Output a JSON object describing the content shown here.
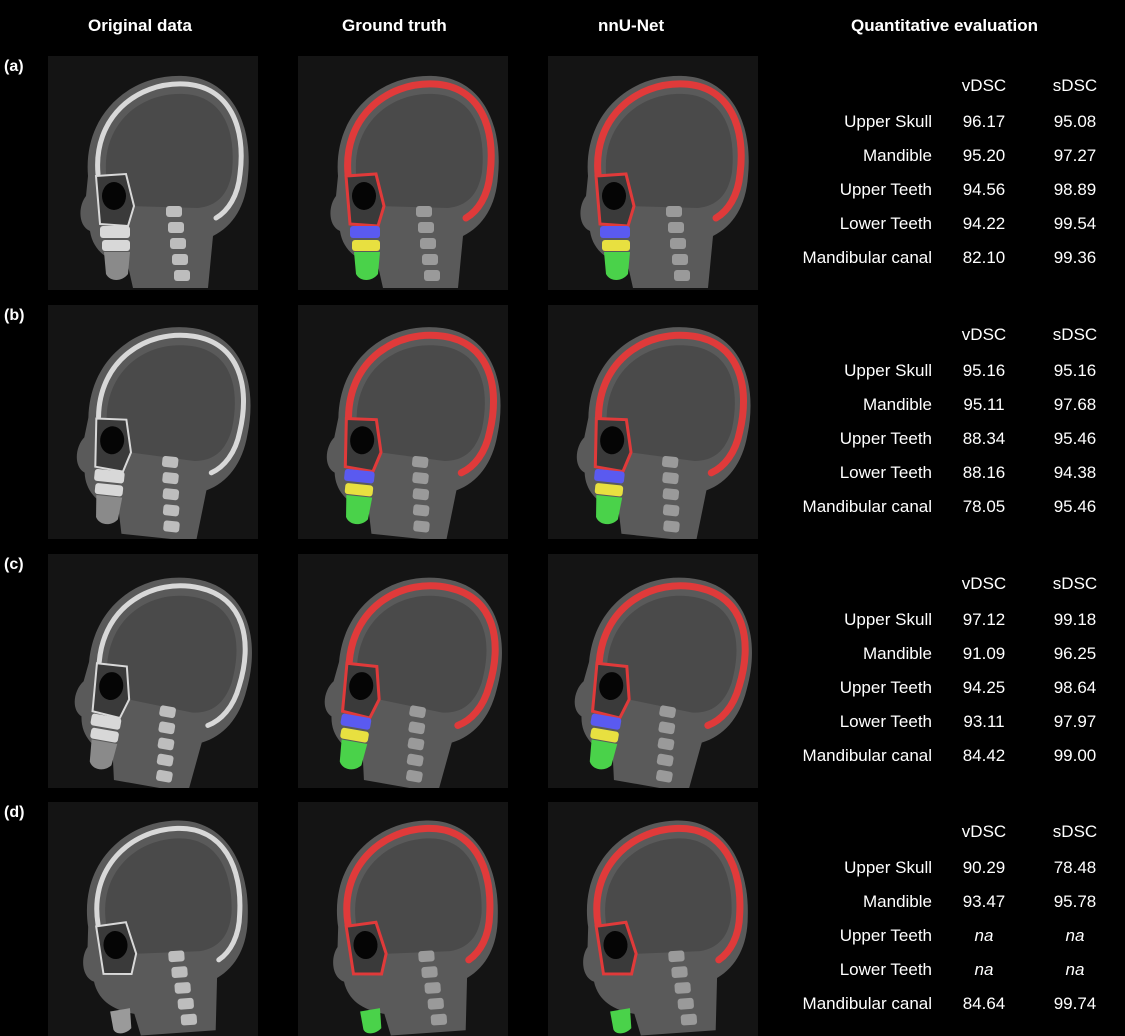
{
  "headers": {
    "original": "Original data",
    "ground_truth": "Ground truth",
    "nnunet": "nnU-Net",
    "quant": "Quantitative evaluation"
  },
  "rows": [
    {
      "label": "(a)",
      "col_vdsc": "vDSC",
      "col_sdsc": "sDSC",
      "metrics": [
        {
          "name": "Upper Skull",
          "vdsc": "96.17",
          "sdsc": "95.08"
        },
        {
          "name": "Mandible",
          "vdsc": "95.20",
          "sdsc": "97.27"
        },
        {
          "name": "Upper Teeth",
          "vdsc": "94.56",
          "sdsc": "98.89"
        },
        {
          "name": "Lower Teeth",
          "vdsc": "94.22",
          "sdsc": "99.54"
        },
        {
          "name": "Mandibular canal",
          "vdsc": "82.10",
          "sdsc": "99.36"
        }
      ]
    },
    {
      "label": "(b)",
      "col_vdsc": "vDSC",
      "col_sdsc": "sDSC",
      "metrics": [
        {
          "name": "Upper Skull",
          "vdsc": "95.16",
          "sdsc": "95.16"
        },
        {
          "name": "Mandible",
          "vdsc": "95.11",
          "sdsc": "97.68"
        },
        {
          "name": "Upper Teeth",
          "vdsc": "88.34",
          "sdsc": "95.46"
        },
        {
          "name": "Lower Teeth",
          "vdsc": "88.16",
          "sdsc": "94.38"
        },
        {
          "name": "Mandibular canal",
          "vdsc": "78.05",
          "sdsc": "95.46"
        }
      ]
    },
    {
      "label": "(c)",
      "col_vdsc": "vDSC",
      "col_sdsc": "sDSC",
      "metrics": [
        {
          "name": "Upper Skull",
          "vdsc": "97.12",
          "sdsc": "99.18"
        },
        {
          "name": "Mandible",
          "vdsc": "91.09",
          "sdsc": "96.25"
        },
        {
          "name": "Upper Teeth",
          "vdsc": "94.25",
          "sdsc": "98.64"
        },
        {
          "name": "Lower Teeth",
          "vdsc": "93.11",
          "sdsc": "97.97"
        },
        {
          "name": "Mandibular canal",
          "vdsc": "84.42",
          "sdsc": "99.00"
        }
      ]
    },
    {
      "label": "(d)",
      "col_vdsc": "vDSC",
      "col_sdsc": "sDSC",
      "metrics": [
        {
          "name": "Upper Skull",
          "vdsc": "90.29",
          "sdsc": "78.48"
        },
        {
          "name": "Mandible",
          "vdsc": "93.47",
          "sdsc": "95.78"
        },
        {
          "name": "Upper Teeth",
          "vdsc": "na",
          "sdsc": "na"
        },
        {
          "name": "Lower Teeth",
          "vdsc": "na",
          "sdsc": "na"
        },
        {
          "name": "Mandibular canal",
          "vdsc": "84.64",
          "sdsc": "99.74"
        }
      ]
    }
  ],
  "colors": {
    "background": "#000000",
    "ct_tissue": "#5a5a5a",
    "ct_bone": "#d8d8d8",
    "upper_skull": "#e03a3a",
    "upper_teeth": "#5a5af0",
    "lower_teeth": "#e8e040",
    "mandible": "#4ad24a"
  },
  "panel_types": [
    "original",
    "ground_truth",
    "nnunet"
  ]
}
